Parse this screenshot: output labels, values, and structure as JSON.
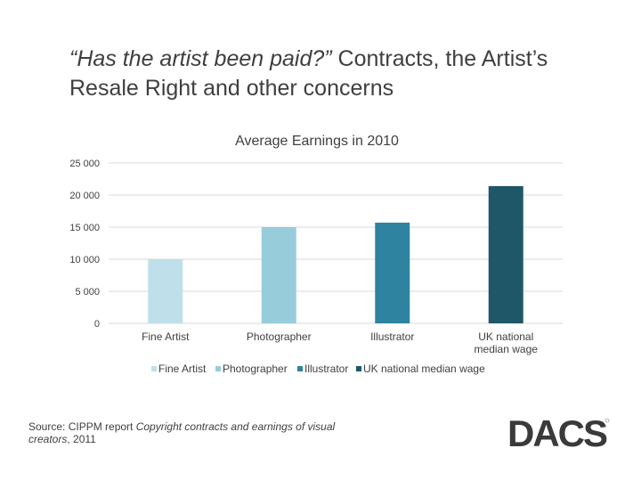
{
  "slide": {
    "title_quote": "“Has the artist been paid?”",
    "title_rest": " Contracts, the Artist’s Resale Right and other concerns"
  },
  "chart_data": {
    "type": "bar",
    "title": "Average Earnings in 2010",
    "categories": [
      "Fine Artist",
      "Photographer",
      "Illustrator",
      "UK national median wage"
    ],
    "values": [
      10000,
      15000,
      15700,
      21400
    ],
    "colors": [
      "#bfe0ea",
      "#97ccdb",
      "#2e84a0",
      "#1f5768"
    ],
    "ylim": [
      0,
      25000
    ],
    "yticks": [
      0,
      5000,
      10000,
      15000,
      20000,
      25000
    ],
    "ytick_labels": [
      "0",
      "5 000",
      "10 000",
      "15 000",
      "20 000",
      "25 000"
    ],
    "xlabel": "",
    "ylabel": "",
    "grid": true,
    "legend": [
      "Fine Artist",
      "Photographer",
      "Illustrator",
      "UK national median wage"
    ],
    "legend_position": "bottom"
  },
  "source": {
    "prefix": "Source: CIPPM report ",
    "italic": "Copyright contracts and earnings of visual creators",
    "suffix": ", 2011"
  },
  "logo": {
    "text": "DACS",
    "color": "#3a3a3a"
  }
}
